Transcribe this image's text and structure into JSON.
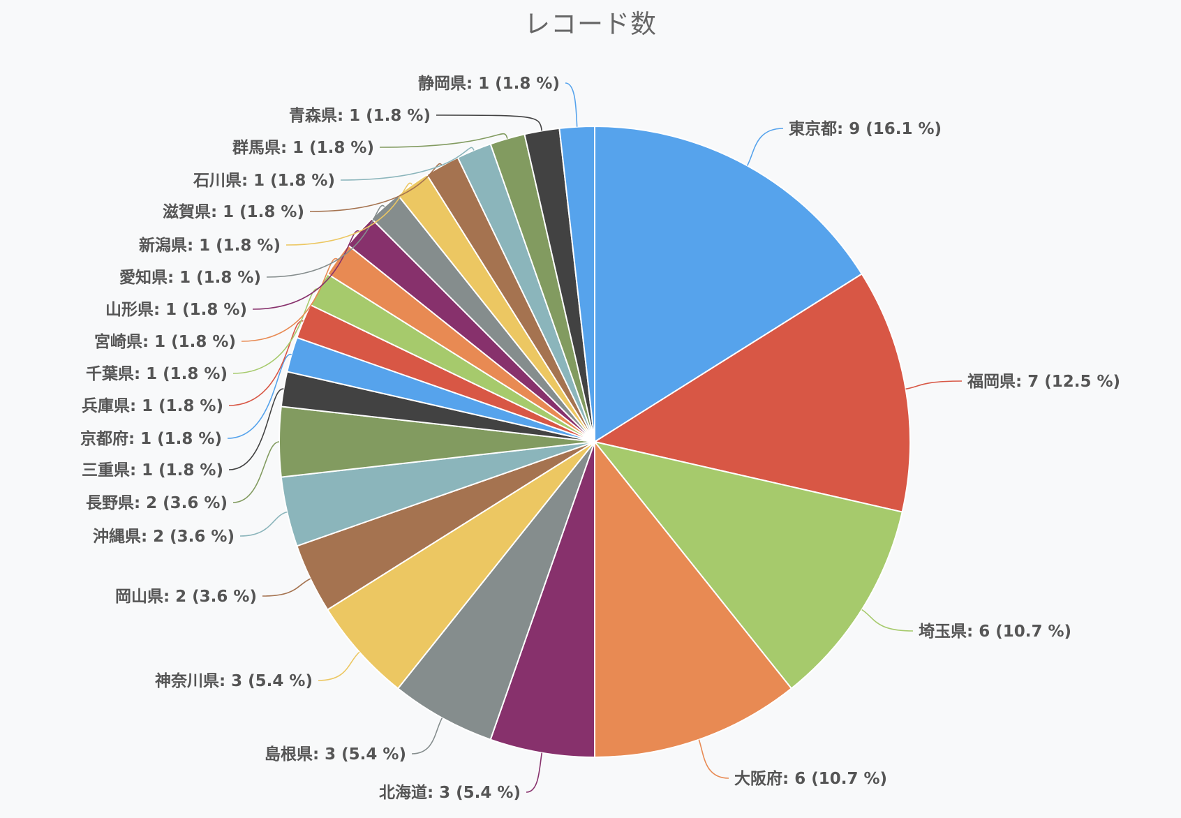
{
  "chart_data": {
    "type": "pie",
    "title": "レコード数",
    "slices": [
      {
        "name": "東京都",
        "value": 9,
        "percent": "16.1 %",
        "color": "#56a3ec"
      },
      {
        "name": "福岡県",
        "value": 7,
        "percent": "12.5 %",
        "color": "#d85745"
      },
      {
        "name": "埼玉県",
        "value": 6,
        "percent": "10.7 %",
        "color": "#a6ca6c"
      },
      {
        "name": "大阪府",
        "value": 6,
        "percent": "10.7 %",
        "color": "#e88a53"
      },
      {
        "name": "北海道",
        "value": 3,
        "percent": "5.4 %",
        "color": "#87316c"
      },
      {
        "name": "島根県",
        "value": 3,
        "percent": "5.4 %",
        "color": "#858d8d"
      },
      {
        "name": "神奈川県",
        "value": 3,
        "percent": "5.4 %",
        "color": "#ecc762"
      },
      {
        "name": "岡山県",
        "value": 2,
        "percent": "3.6 %",
        "color": "#a57350"
      },
      {
        "name": "沖縄県",
        "value": 2,
        "percent": "3.6 %",
        "color": "#8bb5bb"
      },
      {
        "name": "長野県",
        "value": 2,
        "percent": "3.6 %",
        "color": "#829b60"
      },
      {
        "name": "三重県",
        "value": 1,
        "percent": "1.8 %",
        "color": "#424242"
      },
      {
        "name": "京都府",
        "value": 1,
        "percent": "1.8 %",
        "color": "#56a3ec"
      },
      {
        "name": "兵庫県",
        "value": 1,
        "percent": "1.8 %",
        "color": "#d85745"
      },
      {
        "name": "千葉県",
        "value": 1,
        "percent": "1.8 %",
        "color": "#a6ca6c"
      },
      {
        "name": "宮崎県",
        "value": 1,
        "percent": "1.8 %",
        "color": "#e88a53"
      },
      {
        "name": "山形県",
        "value": 1,
        "percent": "1.8 %",
        "color": "#87316c"
      },
      {
        "name": "愛知県",
        "value": 1,
        "percent": "1.8 %",
        "color": "#858d8d"
      },
      {
        "name": "新潟県",
        "value": 1,
        "percent": "1.8 %",
        "color": "#ecc762"
      },
      {
        "name": "滋賀県",
        "value": 1,
        "percent": "1.8 %",
        "color": "#a57350"
      },
      {
        "name": "石川県",
        "value": 1,
        "percent": "1.8 %",
        "color": "#8bb5bb"
      },
      {
        "name": "群馬県",
        "value": 1,
        "percent": "1.8 %",
        "color": "#829b60"
      },
      {
        "name": "青森県",
        "value": 1,
        "percent": "1.8 %",
        "color": "#424242"
      },
      {
        "name": "静岡県",
        "value": 1,
        "percent": "1.8 %",
        "color": "#56a3ec"
      }
    ]
  }
}
